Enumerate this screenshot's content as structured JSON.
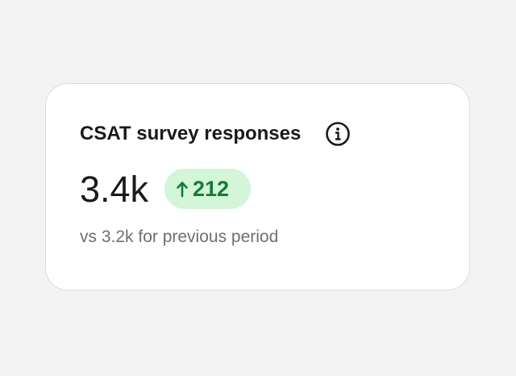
{
  "card": {
    "title": "CSAT survey responses",
    "value": "3.4k",
    "change": "212",
    "comparison": "vs 3.2k for previous period"
  }
}
